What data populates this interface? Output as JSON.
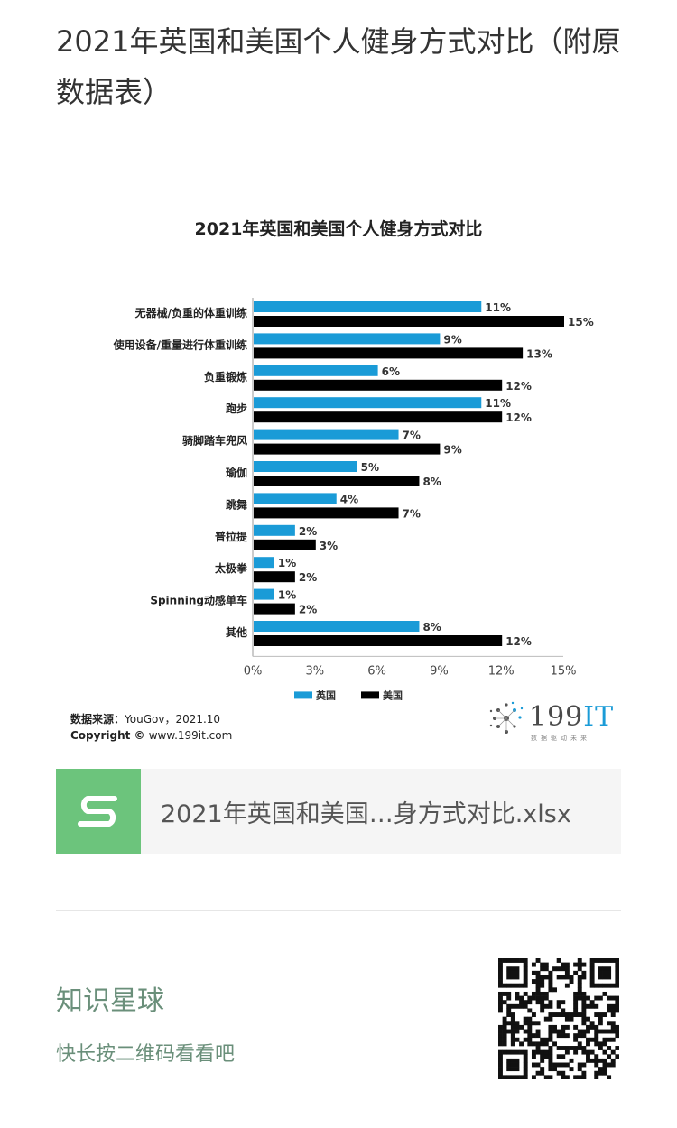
{
  "article": {
    "title": "2021年英国和美国个人健身方式对比（附原数据表）"
  },
  "chart_data": {
    "type": "bar",
    "orientation": "horizontal",
    "title": "2021年英国和美国个人健身方式对比",
    "categories": [
      "无器械/负重的体重训练",
      "使用设备/重量进行体重训练",
      "负重锻炼",
      "跑步",
      "骑脚踏车兜风",
      "瑜伽",
      "跳舞",
      "普拉提",
      "太极拳",
      "Spinning动感单车",
      "其他"
    ],
    "series": [
      {
        "name": "英国",
        "color": "#1a9bd7",
        "values": [
          11,
          9,
          6,
          11,
          7,
          5,
          4,
          2,
          1,
          1,
          8
        ]
      },
      {
        "name": "美国",
        "color": "#000000",
        "values": [
          15,
          13,
          12,
          12,
          9,
          8,
          7,
          3,
          2,
          2,
          12
        ]
      }
    ],
    "xlim": [
      0,
      15
    ],
    "x_ticks": [
      0,
      3,
      6,
      9,
      12,
      15
    ],
    "tick_suffix": "%",
    "value_suffix": "%",
    "legend_position": "bottom-center",
    "grid": false
  },
  "source": {
    "label": "数据来源：",
    "value": "YouGov，2021.10",
    "copyright_label": "Copyright ©",
    "copyright_value": "www.199it.com"
  },
  "logo": {
    "text_num": "199",
    "text_it": "IT",
    "tagline": "数据驱动未来"
  },
  "file": {
    "icon": "spreadsheet-s-icon",
    "name": "2021年英国和美国…身方式对比.xlsx"
  },
  "promo": {
    "title": "知识星球",
    "subtitle": "快长按二维码看看吧"
  }
}
